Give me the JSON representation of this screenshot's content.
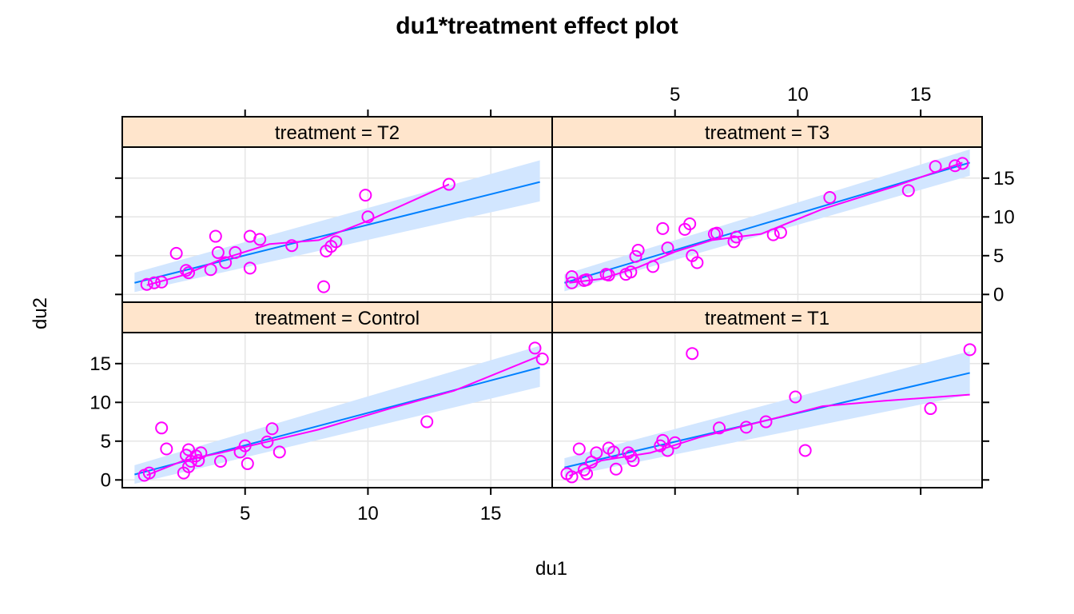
{
  "chart_data": {
    "type": "scatter",
    "title": "du1*treatment effect plot",
    "xlabel": "du1",
    "ylabel": "du2",
    "xlim": [
      0,
      17.5
    ],
    "ylim": [
      -1,
      19
    ],
    "x_ticks": [
      5,
      10,
      15
    ],
    "y_ticks": [
      0,
      5,
      10,
      15
    ],
    "grid": true,
    "colors": {
      "points": "#ff00ff",
      "smooth": "#ff00ff",
      "fit": "#0080ff",
      "band": "#d2e6ff",
      "strip": "#ffe5cc",
      "grid": "#e6e6e6"
    },
    "panels": [
      {
        "strip": "treatment = T2",
        "fit": [
          [
            0.5,
            1.5
          ],
          [
            17,
            14.5
          ]
        ],
        "band": {
          "lower": [
            [
              0.5,
              0.3
            ],
            [
              17,
              12
            ]
          ],
          "upper": [
            [
              0.5,
              2.8
            ],
            [
              17,
              17.3
            ]
          ]
        },
        "smooth": [
          [
            1,
            1.2
          ],
          [
            2.5,
            2.5
          ],
          [
            4,
            4.5
          ],
          [
            6,
            6.5
          ],
          [
            8,
            7
          ],
          [
            10,
            9.5
          ],
          [
            13.3,
            14.2
          ]
        ],
        "points": [
          [
            1,
            1.3
          ],
          [
            1.3,
            1.5
          ],
          [
            1.6,
            1.6
          ],
          [
            2.2,
            5.3
          ],
          [
            2.6,
            3.1
          ],
          [
            2.7,
            2.8
          ],
          [
            3.6,
            3.2
          ],
          [
            3.8,
            7.5
          ],
          [
            3.9,
            5.4
          ],
          [
            4.2,
            4.1
          ],
          [
            4.6,
            5.4
          ],
          [
            5.2,
            7.5
          ],
          [
            5.2,
            3.4
          ],
          [
            5.6,
            7.1
          ],
          [
            6.9,
            6.3
          ],
          [
            8.2,
            1
          ],
          [
            8.3,
            5.6
          ],
          [
            8.5,
            6.2
          ],
          [
            8.7,
            6.8
          ],
          [
            9.9,
            12.8
          ],
          [
            10,
            10
          ],
          [
            13.3,
            14.2
          ]
        ]
      },
      {
        "strip": "treatment = T3",
        "fit": [
          [
            0.5,
            1.5
          ],
          [
            17,
            17
          ]
        ],
        "band": {
          "lower": [
            [
              0.5,
              0.4
            ],
            [
              17,
              15.3
            ]
          ],
          "upper": [
            [
              0.5,
              2.6
            ],
            [
              17,
              18.7
            ]
          ]
        },
        "smooth": [
          [
            0.7,
            1.5
          ],
          [
            2,
            2
          ],
          [
            3.5,
            3.5
          ],
          [
            5,
            5.5
          ],
          [
            6.5,
            7
          ],
          [
            8.5,
            7.8
          ],
          [
            11,
            11
          ],
          [
            14,
            14
          ],
          [
            16.7,
            17
          ]
        ],
        "points": [
          [
            0.8,
            2.3
          ],
          [
            0.8,
            1.5
          ],
          [
            1.3,
            1.8
          ],
          [
            1.4,
            1.9
          ],
          [
            2.2,
            2.6
          ],
          [
            2.3,
            2.5
          ],
          [
            3,
            2.6
          ],
          [
            3.2,
            2.9
          ],
          [
            3.4,
            4.9
          ],
          [
            3.5,
            5.7
          ],
          [
            4.1,
            3.6
          ],
          [
            4.5,
            8.5
          ],
          [
            4.7,
            6
          ],
          [
            5.4,
            8.4
          ],
          [
            5.6,
            9.1
          ],
          [
            5.7,
            5
          ],
          [
            5.9,
            4.1
          ],
          [
            6.6,
            7.8
          ],
          [
            6.7,
            7.9
          ],
          [
            7.4,
            6.8
          ],
          [
            7.5,
            7.4
          ],
          [
            9,
            7.7
          ],
          [
            9.3,
            8.0
          ],
          [
            11.3,
            12.5
          ],
          [
            14.5,
            13.4
          ],
          [
            15.6,
            16.5
          ],
          [
            16.4,
            16.6
          ],
          [
            16.7,
            16.9
          ]
        ]
      },
      {
        "strip": "treatment = Control",
        "fit": [
          [
            0.5,
            0.7
          ],
          [
            17,
            14.5
          ]
        ],
        "band": {
          "lower": [
            [
              0.5,
              -0.5
            ],
            [
              17,
              12
            ]
          ],
          "upper": [
            [
              0.5,
              1.9
            ],
            [
              17,
              17.3
            ]
          ]
        },
        "smooth": [
          [
            1,
            0.6
          ],
          [
            2.5,
            2.5
          ],
          [
            4,
            3.5
          ],
          [
            6,
            5
          ],
          [
            8,
            6.5
          ],
          [
            11,
            9.3
          ],
          [
            13.5,
            11.5
          ],
          [
            17,
            16
          ]
        ],
        "points": [
          [
            0.9,
            0.6
          ],
          [
            1.1,
            0.9
          ],
          [
            1.6,
            6.7
          ],
          [
            1.8,
            4
          ],
          [
            2.5,
            0.9
          ],
          [
            2.6,
            3.2
          ],
          [
            2.7,
            3.9
          ],
          [
            2.7,
            1.7
          ],
          [
            2.8,
            2.4
          ],
          [
            3,
            3.1
          ],
          [
            3.1,
            2.5
          ],
          [
            3.2,
            3.5
          ],
          [
            4,
            2.4
          ],
          [
            4.8,
            3.6
          ],
          [
            5,
            4.4
          ],
          [
            5.1,
            2.1
          ],
          [
            5.9,
            4.9
          ],
          [
            6.1,
            6.6
          ],
          [
            6.4,
            3.6
          ],
          [
            12.4,
            7.5
          ],
          [
            16.8,
            17
          ],
          [
            17.1,
            15.6
          ]
        ]
      },
      {
        "strip": "treatment = T1",
        "fit": [
          [
            0.5,
            1.6
          ],
          [
            17,
            13.8
          ]
        ],
        "band": {
          "lower": [
            [
              0.5,
              0.4
            ],
            [
              17,
              11
            ]
          ],
          "upper": [
            [
              0.5,
              2.8
            ],
            [
              17,
              16.6
            ]
          ]
        },
        "smooth": [
          [
            0.7,
            0.5
          ],
          [
            2,
            2.5
          ],
          [
            4,
            3.5
          ],
          [
            6,
            5.5
          ],
          [
            8.5,
            7.5
          ],
          [
            11,
            9.5
          ],
          [
            13.5,
            10.2
          ],
          [
            17,
            11
          ]
        ],
        "points": [
          [
            0.6,
            0.8
          ],
          [
            0.8,
            0.4
          ],
          [
            1.1,
            4
          ],
          [
            1.3,
            1.3
          ],
          [
            1.4,
            0.8
          ],
          [
            1.6,
            2.3
          ],
          [
            1.8,
            3.5
          ],
          [
            2.3,
            4.1
          ],
          [
            2.5,
            3.6
          ],
          [
            2.6,
            1.4
          ],
          [
            3.1,
            3.5
          ],
          [
            3.2,
            3.1
          ],
          [
            3.3,
            2.5
          ],
          [
            4.4,
            4.4
          ],
          [
            4.5,
            5.1
          ],
          [
            4.7,
            3.8
          ],
          [
            5,
            4.8
          ],
          [
            5.7,
            16.3
          ],
          [
            6.8,
            6.7
          ],
          [
            7.9,
            6.8
          ],
          [
            8.7,
            7.5
          ],
          [
            9.9,
            10.7
          ],
          [
            10.3,
            3.8
          ],
          [
            15.4,
            9.2
          ],
          [
            17,
            16.8
          ]
        ]
      }
    ]
  }
}
